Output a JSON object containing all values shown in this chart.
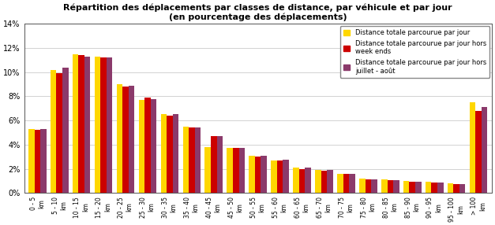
{
  "title_line1": "Répartition des déplacements par classes de distance, par véhicule et par jour",
  "title_line2": "(en pourcentage des déplacements)",
  "categories": [
    "0 - 5\nkm",
    "5 - 10\nkm",
    "10 - 15\nkm",
    "15 - 20\nkm",
    "20 - 25\nkm",
    "25 - 30\nkm",
    "30 - 35\nkm",
    "35 - 40\nkm",
    "40 - 45\nkm",
    "45 - 50\nkm",
    "50 - 55\nkm",
    "55 - 60\nkm",
    "60 - 65\nkm",
    "65 - 70\nkm",
    "70 - 75\nkm",
    "75 - 80\nkm",
    "80 - 85\nkm",
    "85 - 90\nkm",
    "90 - 95\nkm",
    "95 - 100\nkm",
    "> 100\nkm"
  ],
  "series": [
    {
      "label": "Distance totale parcourue par jour",
      "color": "#FFD700",
      "values": [
        5.3,
        10.2,
        11.5,
        11.3,
        9.0,
        7.7,
        6.5,
        5.5,
        3.8,
        3.7,
        3.1,
        2.7,
        2.1,
        1.9,
        1.6,
        1.2,
        1.1,
        1.0,
        0.9,
        0.8,
        7.5
      ]
    },
    {
      "label": "Distance totale parcourue par jour hors\nweek ends",
      "color": "#CC0000",
      "values": [
        5.2,
        9.9,
        11.4,
        11.2,
        8.8,
        7.9,
        6.4,
        5.4,
        4.7,
        3.7,
        3.0,
        2.7,
        2.0,
        1.85,
        1.55,
        1.15,
        1.05,
        0.95,
        0.85,
        0.75,
        6.8
      ]
    },
    {
      "label": "Distance totale parcourue par jour hors\njuillet - août",
      "color": "#8B3A6B",
      "values": [
        5.3,
        10.4,
        11.3,
        11.2,
        8.9,
        7.8,
        6.5,
        5.4,
        4.7,
        3.7,
        3.05,
        2.75,
        2.1,
        1.9,
        1.55,
        1.15,
        1.05,
        0.9,
        0.85,
        0.7,
        7.1
      ]
    }
  ],
  "ylim": [
    0,
    14
  ],
  "yticks": [
    0,
    2,
    4,
    6,
    8,
    10,
    12,
    14
  ],
  "ytick_labels": [
    "0%",
    "2%",
    "4%",
    "6%",
    "8%",
    "10%",
    "12%",
    "14%"
  ],
  "background_color": "#FFFFFF",
  "grid_color": "#C0C0C0",
  "bar_width": 0.27,
  "legend_loc": "upper right"
}
